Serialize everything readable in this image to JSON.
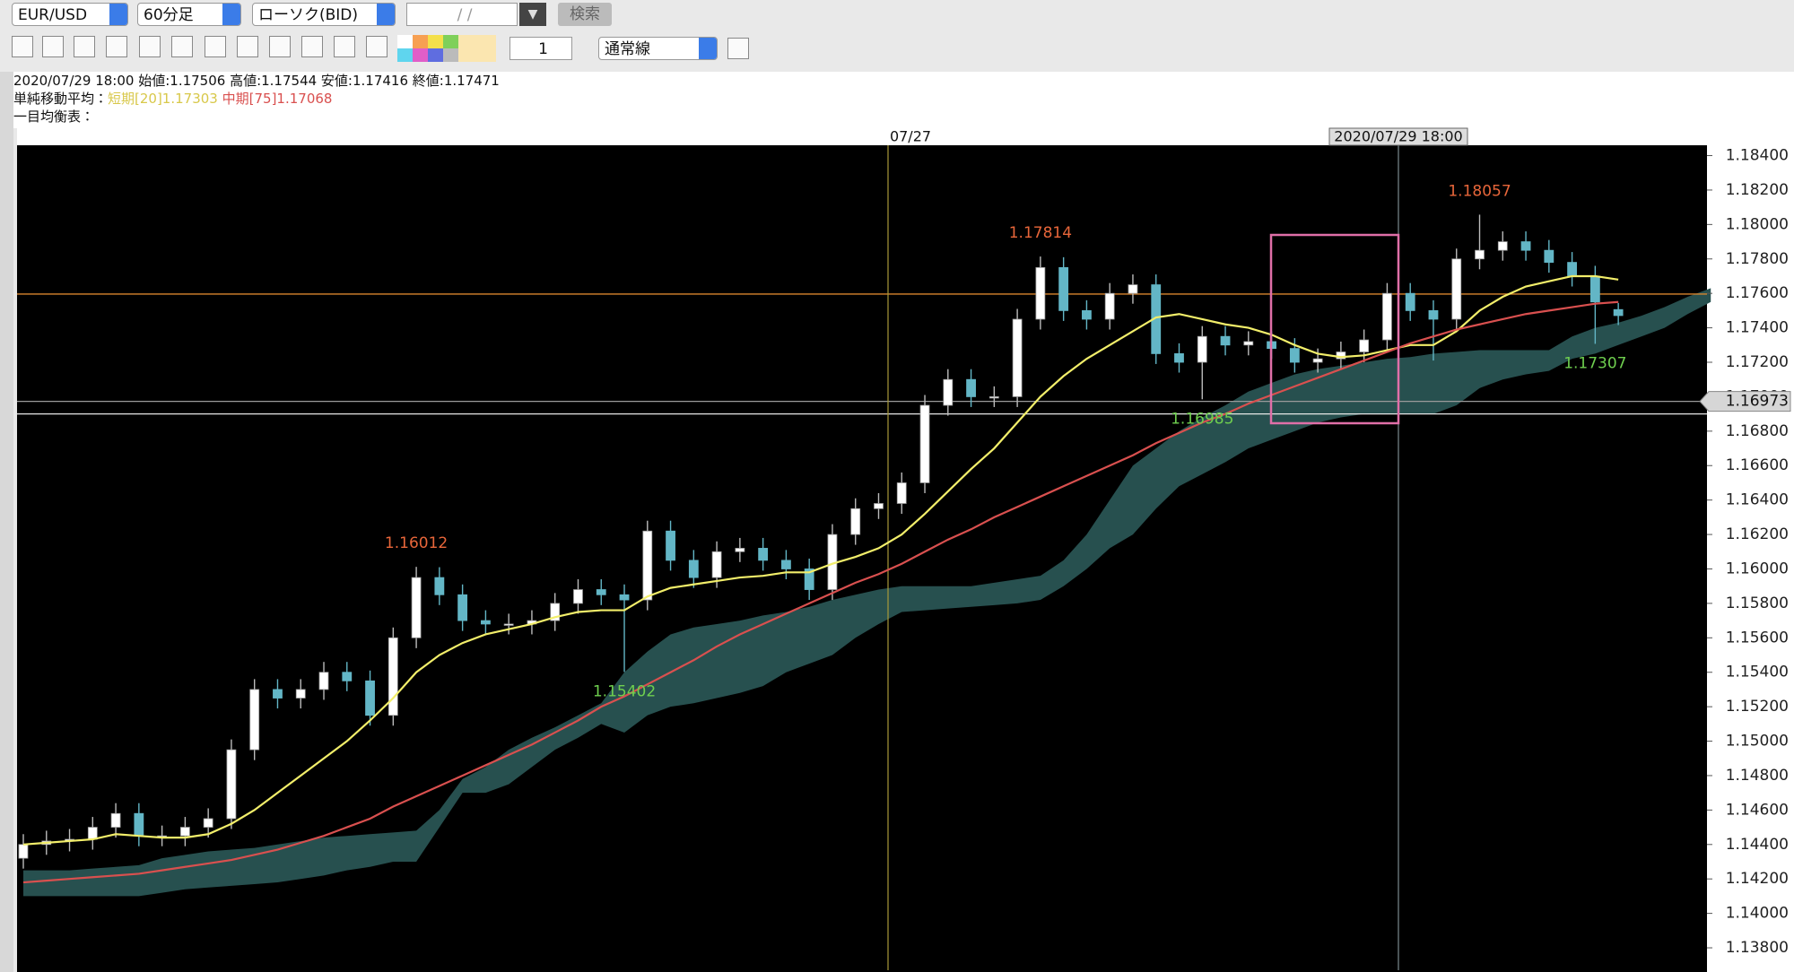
{
  "toolbar": {
    "symbol": "EUR/USD",
    "timeframe": "60分足",
    "chart_type": "ローソク(BID)",
    "date": "/  /",
    "search": "検索",
    "line_width": "1",
    "line_style": "通常線"
  },
  "info": {
    "ohlc": "2020/07/29 18:00 始値:1.17506 高値:1.17544 安値:1.17416 終値:1.17471",
    "sma_label": "単純移動平均：",
    "sma_short": "短期[20]1.17303",
    "sma_mid": "中期[75]1.17068",
    "ichimoku_label": "一目均衡表："
  },
  "chart_data": {
    "type": "candlestick",
    "up_color": "#ffffff",
    "down_color": "#63b6c6",
    "open": [
      1.1432,
      1.144,
      1.1442,
      1.1443,
      1.145,
      1.1458,
      1.1445,
      1.1445,
      1.145,
      1.1455,
      1.1495,
      1.153,
      1.1525,
      1.153,
      1.154,
      1.1535,
      1.1515,
      1.156,
      1.1595,
      1.1585,
      1.157,
      1.1568,
      1.1568,
      1.157,
      1.158,
      1.1588,
      1.1585,
      1.1582,
      1.1622,
      1.1605,
      1.1595,
      1.161,
      1.1612,
      1.1605,
      1.16,
      1.1588,
      1.162,
      1.1635,
      1.1638,
      1.165,
      1.1695,
      1.171,
      1.17,
      1.17,
      1.1745,
      1.1775,
      1.175,
      1.1745,
      1.176,
      1.1765,
      1.1725,
      1.172,
      1.1735,
      1.173,
      1.1732,
      1.1728,
      1.172,
      1.1722,
      1.1726,
      1.1733,
      1.176,
      1.175,
      1.1745,
      1.178,
      1.1785,
      1.179,
      1.1785,
      1.1778,
      1.177,
      1.17506
    ],
    "high": [
      1.1446,
      1.1448,
      1.1449,
      1.1456,
      1.1464,
      1.1464,
      1.1451,
      1.1456,
      1.1461,
      1.1501,
      1.1536,
      1.1536,
      1.1536,
      1.1546,
      1.1546,
      1.1541,
      1.1566,
      1.16012,
      1.1601,
      1.1591,
      1.1576,
      1.1574,
      1.1576,
      1.1586,
      1.1594,
      1.1594,
      1.1591,
      1.1628,
      1.1628,
      1.1611,
      1.1616,
      1.1618,
      1.1618,
      1.1611,
      1.1606,
      1.1626,
      1.1641,
      1.1644,
      1.1656,
      1.1701,
      1.1716,
      1.1716,
      1.1706,
      1.1751,
      1.17814,
      1.1781,
      1.1756,
      1.1766,
      1.1771,
      1.1771,
      1.1731,
      1.1741,
      1.1741,
      1.1738,
      1.1738,
      1.1734,
      1.1728,
      1.1732,
      1.1739,
      1.1766,
      1.1766,
      1.1756,
      1.1786,
      1.18057,
      1.1796,
      1.1796,
      1.1791,
      1.1784,
      1.1776,
      1.17544
    ],
    "low": [
      1.1426,
      1.1434,
      1.1436,
      1.1437,
      1.1444,
      1.1439,
      1.1439,
      1.1439,
      1.1444,
      1.1449,
      1.1489,
      1.1519,
      1.1519,
      1.1524,
      1.1529,
      1.1509,
      1.1509,
      1.1554,
      1.1579,
      1.1564,
      1.1562,
      1.1562,
      1.1562,
      1.1564,
      1.1574,
      1.1579,
      1.15402,
      1.1576,
      1.1599,
      1.1589,
      1.1589,
      1.1604,
      1.1599,
      1.1594,
      1.1582,
      1.1582,
      1.1614,
      1.1629,
      1.1632,
      1.1644,
      1.1689,
      1.1694,
      1.1694,
      1.1694,
      1.1739,
      1.1744,
      1.1739,
      1.1739,
      1.1754,
      1.1719,
      1.1714,
      1.16985,
      1.1724,
      1.1724,
      1.1722,
      1.1714,
      1.1714,
      1.1716,
      1.172,
      1.1727,
      1.1744,
      1.1721,
      1.1739,
      1.1774,
      1.1779,
      1.1779,
      1.1772,
      1.1764,
      1.17307,
      1.17416
    ],
    "close": [
      1.144,
      1.1442,
      1.1443,
      1.145,
      1.1458,
      1.1445,
      1.1445,
      1.145,
      1.1455,
      1.1495,
      1.153,
      1.1525,
      1.153,
      1.154,
      1.1535,
      1.1515,
      1.156,
      1.1595,
      1.1585,
      1.157,
      1.1568,
      1.1568,
      1.157,
      1.158,
      1.1588,
      1.1585,
      1.1582,
      1.1622,
      1.1605,
      1.1595,
      1.161,
      1.1612,
      1.1605,
      1.16,
      1.1588,
      1.162,
      1.1635,
      1.1638,
      1.165,
      1.1695,
      1.171,
      1.17,
      1.17,
      1.1745,
      1.1775,
      1.175,
      1.1745,
      1.176,
      1.1765,
      1.1725,
      1.172,
      1.1735,
      1.173,
      1.1732,
      1.1728,
      1.172,
      1.1722,
      1.1726,
      1.1733,
      1.176,
      1.175,
      1.1745,
      1.178,
      1.1785,
      1.179,
      1.1785,
      1.1778,
      1.177,
      1.1755,
      1.17471
    ],
    "lines": [
      {
        "color": "#f2ee6a",
        "values": [
          1.144,
          1.1441,
          1.1442,
          1.1443,
          1.1446,
          1.1445,
          1.1444,
          1.1444,
          1.1446,
          1.1452,
          1.146,
          1.147,
          1.148,
          1.149,
          1.15,
          1.1512,
          1.1525,
          1.154,
          1.155,
          1.1557,
          1.1562,
          1.1565,
          1.1568,
          1.1572,
          1.1575,
          1.1576,
          1.1576,
          1.1584,
          1.1589,
          1.1591,
          1.1593,
          1.1595,
          1.1596,
          1.1598,
          1.1598,
          1.1603,
          1.1607,
          1.1612,
          1.162,
          1.1632,
          1.1645,
          1.1658,
          1.167,
          1.1685,
          1.17,
          1.1712,
          1.1722,
          1.173,
          1.1738,
          1.1746,
          1.1748,
          1.1745,
          1.1742,
          1.174,
          1.1736,
          1.173,
          1.1725,
          1.1723,
          1.1724,
          1.1727,
          1.173,
          1.173,
          1.1738,
          1.175,
          1.1758,
          1.1764,
          1.1767,
          1.177,
          1.177,
          1.1768
        ]
      },
      {
        "color": "#d9504f",
        "values": [
          1.1418,
          1.1419,
          1.142,
          1.1421,
          1.1422,
          1.1423,
          1.1425,
          1.1427,
          1.1429,
          1.1431,
          1.1434,
          1.1437,
          1.1441,
          1.1445,
          1.145,
          1.1455,
          1.1462,
          1.1468,
          1.1474,
          1.148,
          1.1486,
          1.1492,
          1.1498,
          1.1505,
          1.1512,
          1.152,
          1.1526,
          1.1533,
          1.154,
          1.1547,
          1.1555,
          1.1562,
          1.1568,
          1.1574,
          1.158,
          1.1586,
          1.1592,
          1.1597,
          1.1603,
          1.161,
          1.1617,
          1.1623,
          1.163,
          1.1636,
          1.1642,
          1.1648,
          1.1654,
          1.166,
          1.1666,
          1.1673,
          1.1679,
          1.1685,
          1.169,
          1.1696,
          1.1701,
          1.1706,
          1.1711,
          1.1716,
          1.1721,
          1.1726,
          1.1731,
          1.1735,
          1.1739,
          1.1742,
          1.1745,
          1.1748,
          1.175,
          1.1752,
          1.1754,
          1.1755
        ]
      }
    ],
    "cloud": {
      "color": "#27504f",
      "upper": [
        1.1425,
        1.1425,
        1.1425,
        1.1426,
        1.1427,
        1.1428,
        1.1432,
        1.1434,
        1.1436,
        1.1437,
        1.1438,
        1.144,
        1.1442,
        1.1444,
        1.1445,
        1.1446,
        1.1447,
        1.1448,
        1.146,
        1.1478,
        1.1485,
        1.1495,
        1.1502,
        1.1508,
        1.1515,
        1.1522,
        1.154,
        1.1552,
        1.1562,
        1.1566,
        1.1568,
        1.157,
        1.1573,
        1.1575,
        1.1578,
        1.1582,
        1.1585,
        1.1588,
        1.159,
        1.159,
        1.159,
        1.159,
        1.1592,
        1.1594,
        1.1596,
        1.1605,
        1.162,
        1.164,
        1.166,
        1.167,
        1.168,
        1.1688,
        1.1695,
        1.1703,
        1.1708,
        1.1713,
        1.1716,
        1.1718,
        1.172,
        1.1722,
        1.1723,
        1.1725,
        1.1726,
        1.1727,
        1.1727,
        1.1727,
        1.1727,
        1.1735,
        1.174,
        1.1743,
        1.1747,
        1.1752,
        1.1758,
        1.1763
      ],
      "lower": [
        1.141,
        1.141,
        1.141,
        1.141,
        1.141,
        1.141,
        1.1412,
        1.1414,
        1.1415,
        1.1416,
        1.1417,
        1.1418,
        1.142,
        1.1422,
        1.1425,
        1.1427,
        1.143,
        1.143,
        1.145,
        1.147,
        1.147,
        1.1475,
        1.1485,
        1.1495,
        1.1502,
        1.151,
        1.1505,
        1.1515,
        1.152,
        1.1522,
        1.1525,
        1.1528,
        1.1532,
        1.154,
        1.1545,
        1.155,
        1.156,
        1.1568,
        1.1575,
        1.1576,
        1.1577,
        1.1578,
        1.1579,
        1.158,
        1.1582,
        1.159,
        1.16,
        1.1612,
        1.162,
        1.1635,
        1.1648,
        1.1655,
        1.1662,
        1.167,
        1.1675,
        1.168,
        1.1685,
        1.1688,
        1.169,
        1.169,
        1.169,
        1.169,
        1.1695,
        1.1705,
        1.171,
        1.1713,
        1.1715,
        1.1722,
        1.1725,
        1.173,
        1.1735,
        1.174,
        1.1748,
        1.1755
      ]
    },
    "hlines": [
      {
        "value": 1.17596,
        "color": "#d9852e"
      },
      {
        "value": 1.16973,
        "label": "1.16973",
        "color": "#9a9a9a"
      },
      {
        "value": 1.169,
        "color": "#e6e6e6"
      }
    ],
    "vlines": [
      {
        "label": "07/27",
        "color": "#a89a3a"
      },
      {
        "label": "2020/07/29 18:00",
        "color": "#7a8a90"
      }
    ],
    "annotations": [
      {
        "text": "1.16012",
        "value": 1.16012,
        "color": "#e8663a"
      },
      {
        "text": "1.15402",
        "value": 1.15402,
        "color": "#6fcf4f"
      },
      {
        "text": "1.17814",
        "value": 1.17814,
        "color": "#e8663a"
      },
      {
        "text": "1.16985",
        "value": 1.16985,
        "color": "#6fcf4f"
      },
      {
        "text": "1.18057",
        "value": 1.18057,
        "color": "#e8663a"
      },
      {
        "text": "1.17307",
        "value": 1.17307,
        "color": "#6fcf4f"
      }
    ],
    "ylim": [
      1.1367,
      1.1846
    ],
    "yticks": [
      {
        "value": 1.138,
        "label": "1.13800"
      },
      {
        "value": 1.14,
        "label": "1.14000"
      },
      {
        "value": 1.142,
        "label": "1.14200"
      },
      {
        "value": 1.144,
        "label": "1.14400"
      },
      {
        "value": 1.146,
        "label": "1.14600"
      },
      {
        "value": 1.148,
        "label": "1.14800"
      },
      {
        "value": 1.15,
        "label": "1.15000"
      },
      {
        "value": 1.152,
        "label": "1.15200"
      },
      {
        "value": 1.154,
        "label": "1.15400"
      },
      {
        "value": 1.156,
        "label": "1.15600"
      },
      {
        "value": 1.158,
        "label": "1.15800"
      },
      {
        "value": 1.16,
        "label": "1.16000"
      },
      {
        "value": 1.162,
        "label": "1.16200"
      },
      {
        "value": 1.164,
        "label": "1.16400"
      },
      {
        "value": 1.166,
        "label": "1.16600"
      },
      {
        "value": 1.168,
        "label": "1.16800"
      },
      {
        "value": 1.17,
        "label": "1.17000"
      },
      {
        "value": 1.172,
        "label": "1.17200"
      },
      {
        "value": 1.174,
        "label": "1.17400"
      },
      {
        "value": 1.176,
        "label": "1.17600"
      },
      {
        "value": 1.178,
        "label": "1.17800"
      },
      {
        "value": 1.18,
        "label": "1.18000"
      },
      {
        "value": 1.182,
        "label": "1.18200"
      },
      {
        "value": 1.184,
        "label": "1.18400"
      }
    ]
  }
}
